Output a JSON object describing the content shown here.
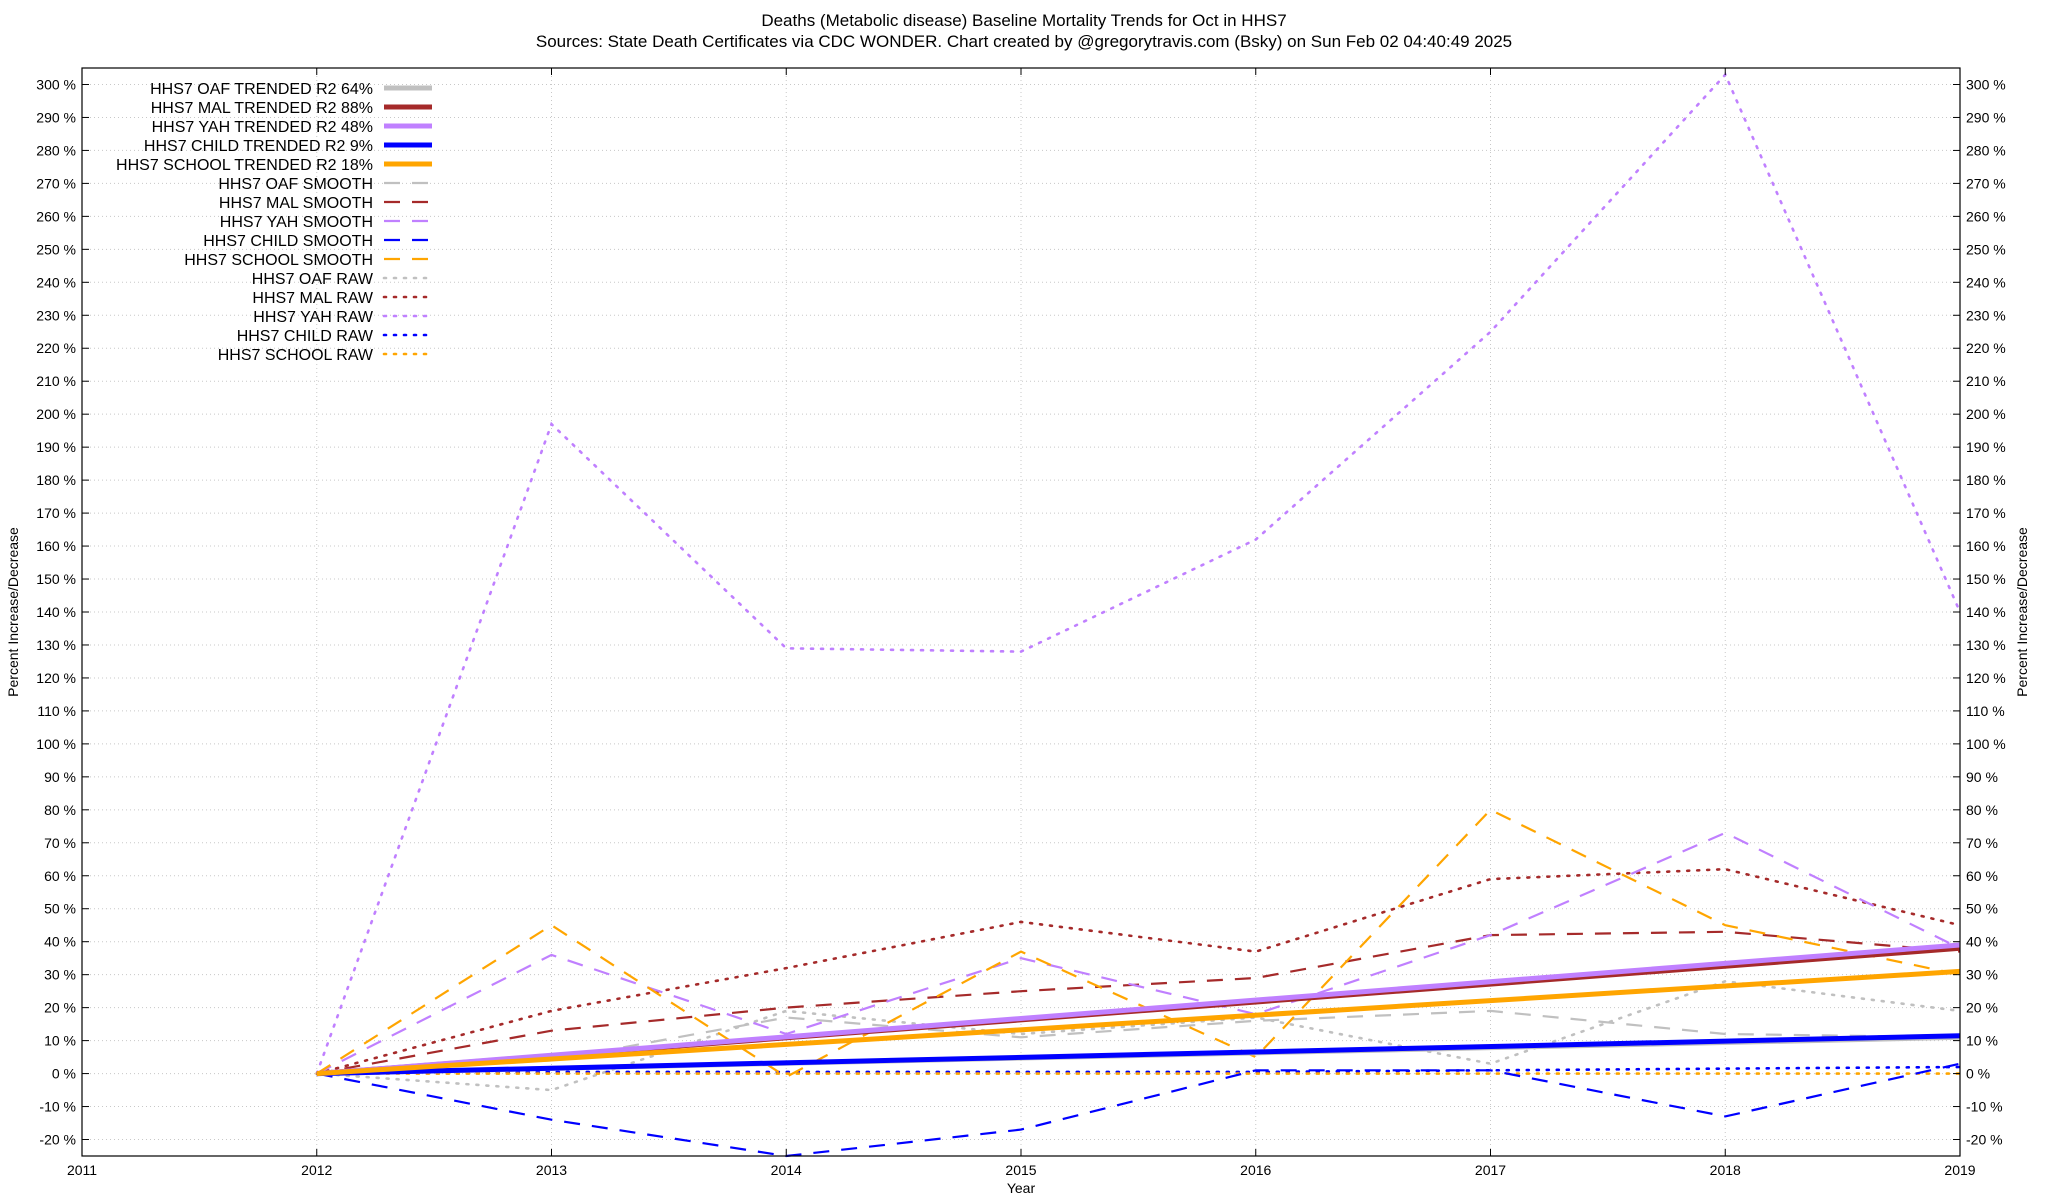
{
  "title_line1": "Deaths (Metabolic disease)  Baseline Mortality Trends for Oct in HHS7",
  "title_line2": "Sources: State Death Certificates via CDC WONDER.              Chart created by @gregorytravis.com (Bsky) on Sun Feb 02 04:40:49 2025",
  "chart_data": {
    "type": "line",
    "title": "Deaths (Metabolic disease)  Baseline Mortality Trends for Oct in HHS7",
    "subtitle": "Sources: State Death Certificates via CDC WONDER.              Chart created by @gregorytravis.com (Bsky) on Sun Feb 02 04:40:49 2025",
    "xlabel": "Year",
    "ylabel": "Percent Increase/Decrease",
    "y2label": "Percent Increase/Decrease",
    "xlim": [
      2011,
      2019
    ],
    "ylim": [
      -25,
      305
    ],
    "x_ticks": [
      2011,
      2012,
      2013,
      2014,
      2015,
      2016,
      2017,
      2018,
      2019
    ],
    "x_tick_labels": [
      "2011",
      "2012",
      "2013",
      "2014",
      "2015",
      "2016",
      "2017",
      "2018",
      "2019"
    ],
    "y_ticks": [
      -20,
      -10,
      0,
      10,
      20,
      30,
      40,
      50,
      60,
      70,
      80,
      90,
      100,
      110,
      120,
      130,
      140,
      150,
      160,
      170,
      180,
      190,
      200,
      210,
      220,
      230,
      240,
      250,
      260,
      270,
      280,
      290,
      300
    ],
    "y_tick_labels": [
      "-20 %",
      "-10 %",
      "0 %",
      "10 %",
      "20 %",
      "30 %",
      "40 %",
      "50 %",
      "60 %",
      "70 %",
      "80 %",
      "90 %",
      "100 %",
      "110 %",
      "120 %",
      "130 %",
      "140 %",
      "150 %",
      "160 %",
      "170 %",
      "180 %",
      "190 %",
      "200 %",
      "210 %",
      "220 %",
      "230 %",
      "240 %",
      "250 %",
      "260 %",
      "270 %",
      "280 %",
      "290 %",
      "300 %"
    ],
    "grid": true,
    "legend_position": "top-left",
    "series": [
      {
        "name": "HHS7 OAF TRENDED R2  64%",
        "style": "solid",
        "color": "#c0c0c0",
        "x": [
          2012,
          2019
        ],
        "y": [
          0,
          11
        ]
      },
      {
        "name": "HHS7 MAL TRENDED R2  88%",
        "style": "solid",
        "color": "#a52a2a",
        "x": [
          2012,
          2019
        ],
        "y": [
          0,
          38
        ]
      },
      {
        "name": "HHS7 YAH TRENDED R2  48%",
        "style": "solid",
        "color": "#c080ff",
        "x": [
          2012,
          2019
        ],
        "y": [
          0,
          39
        ]
      },
      {
        "name": "HHS7 CHILD TRENDED R2   9%",
        "style": "solid",
        "color": "#0000ff",
        "x": [
          2012,
          2019
        ],
        "y": [
          0,
          11.5
        ]
      },
      {
        "name": "HHS7 SCHOOL TRENDED R2  18%",
        "style": "solid",
        "color": "#ffa500",
        "x": [
          2012,
          2019
        ],
        "y": [
          0,
          31
        ]
      },
      {
        "name": "HHS7 OAF SMOOTH",
        "style": "dashed",
        "color": "#c0c0c0",
        "x": [
          2012,
          2013,
          2014,
          2015,
          2016,
          2017,
          2018,
          2019
        ],
        "y": [
          0,
          4,
          17,
          11,
          16,
          19,
          12,
          11
        ]
      },
      {
        "name": "HHS7 MAL SMOOTH",
        "style": "dashed",
        "color": "#a52a2a",
        "x": [
          2012,
          2013,
          2014,
          2015,
          2016,
          2017,
          2018,
          2019
        ],
        "y": [
          0,
          13,
          20,
          25,
          29,
          42,
          43,
          37
        ]
      },
      {
        "name": "HHS7 YAH SMOOTH",
        "style": "dashed",
        "color": "#c080ff",
        "x": [
          2012,
          2013,
          2014,
          2015,
          2016,
          2017,
          2018,
          2019
        ],
        "y": [
          0,
          36,
          12,
          35,
          18,
          42,
          73,
          38
        ]
      },
      {
        "name": "HHS7 CHILD SMOOTH",
        "style": "dashed",
        "color": "#0000ff",
        "x": [
          2012,
          2013,
          2014,
          2015,
          2016,
          2017,
          2018,
          2019
        ],
        "y": [
          0,
          -14,
          -25,
          -17,
          1,
          1,
          -13,
          3
        ]
      },
      {
        "name": "HHS7 SCHOOL SMOOTH",
        "style": "dashed",
        "color": "#ffa500",
        "x": [
          2012,
          2013,
          2014,
          2015,
          2016,
          2017,
          2018,
          2019
        ],
        "y": [
          0,
          45,
          -1,
          37,
          5,
          80,
          45,
          30
        ]
      },
      {
        "name": "HHS7 OAF RAW",
        "style": "dotted",
        "color": "#c0c0c0",
        "x": [
          2012,
          2013,
          2014,
          2015,
          2016,
          2017,
          2018,
          2019
        ],
        "y": [
          0,
          -5,
          19,
          12,
          17,
          3,
          28,
          19
        ]
      },
      {
        "name": "HHS7 MAL RAW",
        "style": "dotted",
        "color": "#a52a2a",
        "x": [
          2012,
          2013,
          2014,
          2015,
          2016,
          2017,
          2018,
          2019
        ],
        "y": [
          0,
          19,
          32,
          46,
          37,
          59,
          62,
          45
        ]
      },
      {
        "name": "HHS7 YAH RAW",
        "style": "dotted",
        "color": "#c080ff",
        "x": [
          2012,
          2013,
          2014,
          2015,
          2016,
          2017,
          2018,
          2019
        ],
        "y": [
          0,
          197,
          129,
          128,
          162,
          225,
          303,
          140
        ]
      },
      {
        "name": "HHS7 CHILD RAW",
        "style": "dotted",
        "color": "#0000ff",
        "x": [
          2012,
          2013,
          2014,
          2015,
          2016,
          2017,
          2018,
          2019
        ],
        "y": [
          0,
          0.5,
          0.5,
          0.5,
          0.5,
          1,
          1.5,
          2
        ]
      },
      {
        "name": "HHS7 SCHOOL RAW",
        "style": "dotted",
        "color": "#ffa500",
        "x": [
          2012,
          2013,
          2014,
          2015,
          2016,
          2017,
          2018,
          2019
        ],
        "y": [
          0,
          0,
          0,
          0,
          0,
          0,
          0,
          0
        ]
      }
    ]
  }
}
